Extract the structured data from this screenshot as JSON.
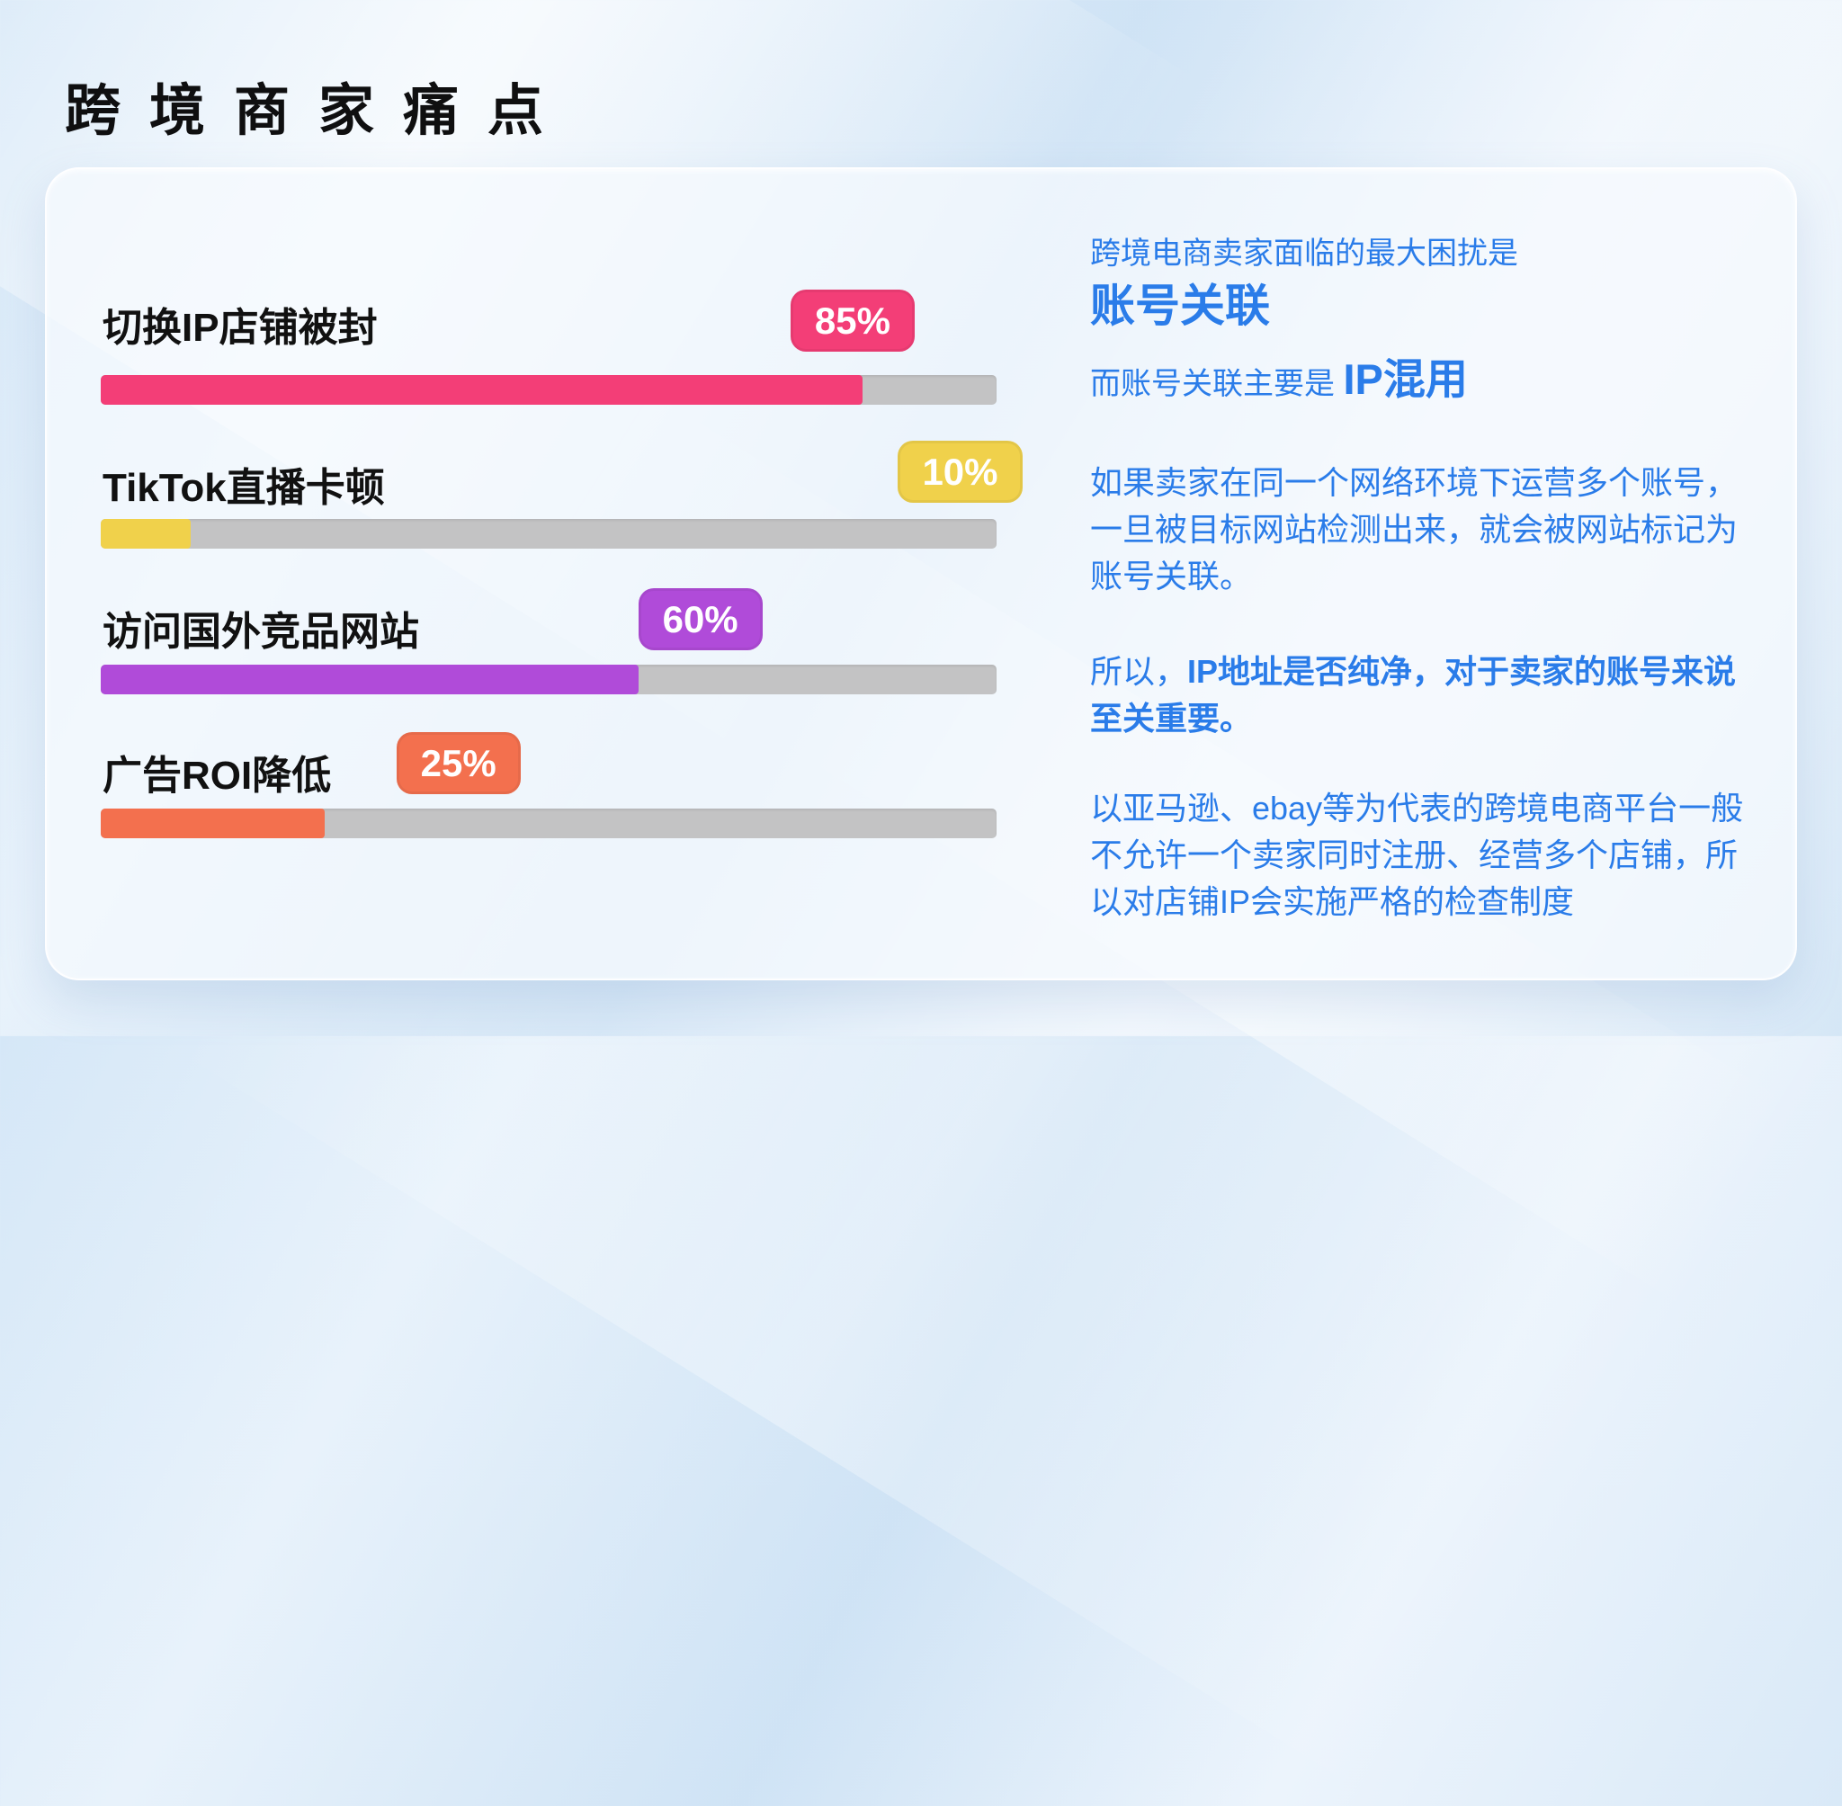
{
  "page": {
    "title": "跨境商家痛点"
  },
  "colors": {
    "accent_blue": "#2a7ce9",
    "title_black": "#0f0f10",
    "card_background": "#f3f7fb",
    "page_background": "#d5e7f7",
    "badge_text": "#ffffff"
  },
  "chart_data": {
    "type": "bar",
    "orientation": "horizontal",
    "title": "",
    "categories": [
      "切换IP店铺被封",
      "TikTok直播卡顿",
      "访问国外竞品网站",
      "广告ROI降低"
    ],
    "values": [
      85,
      10,
      60,
      25
    ],
    "value_labels": [
      "85%",
      "10%",
      "60%",
      "25%"
    ],
    "bar_colors": [
      "#f33e77",
      "#f0d14b",
      "#b04bd9",
      "#f3704e"
    ],
    "track_color": "#c3c3c4",
    "xlim": [
      0,
      100
    ],
    "grid": false,
    "legend": false,
    "badge_offsets_pct": [
      77,
      89,
      60,
      33
    ]
  },
  "panel": {
    "intro_line": "跨境电商卖家面临的最大困扰是",
    "headline": "账号关联",
    "subline_prefix": "而账号关联主要是 ",
    "subline_highlight": "IP混用",
    "para1": "如果卖家在同一个网络环境下运营多个账号，一旦被目标网站检测出来，就会被网站标记为账号关联。",
    "para2_prefix": "所以，",
    "para2_bold": "IP地址是否纯净，对于卖家的账号来说至关重要。",
    "para3": "以亚马逊、ebay等为代表的跨境电商平台一般不允许一个卖家同时注册、经营多个店铺，所以对店铺IP会实施严格的检查制度"
  }
}
